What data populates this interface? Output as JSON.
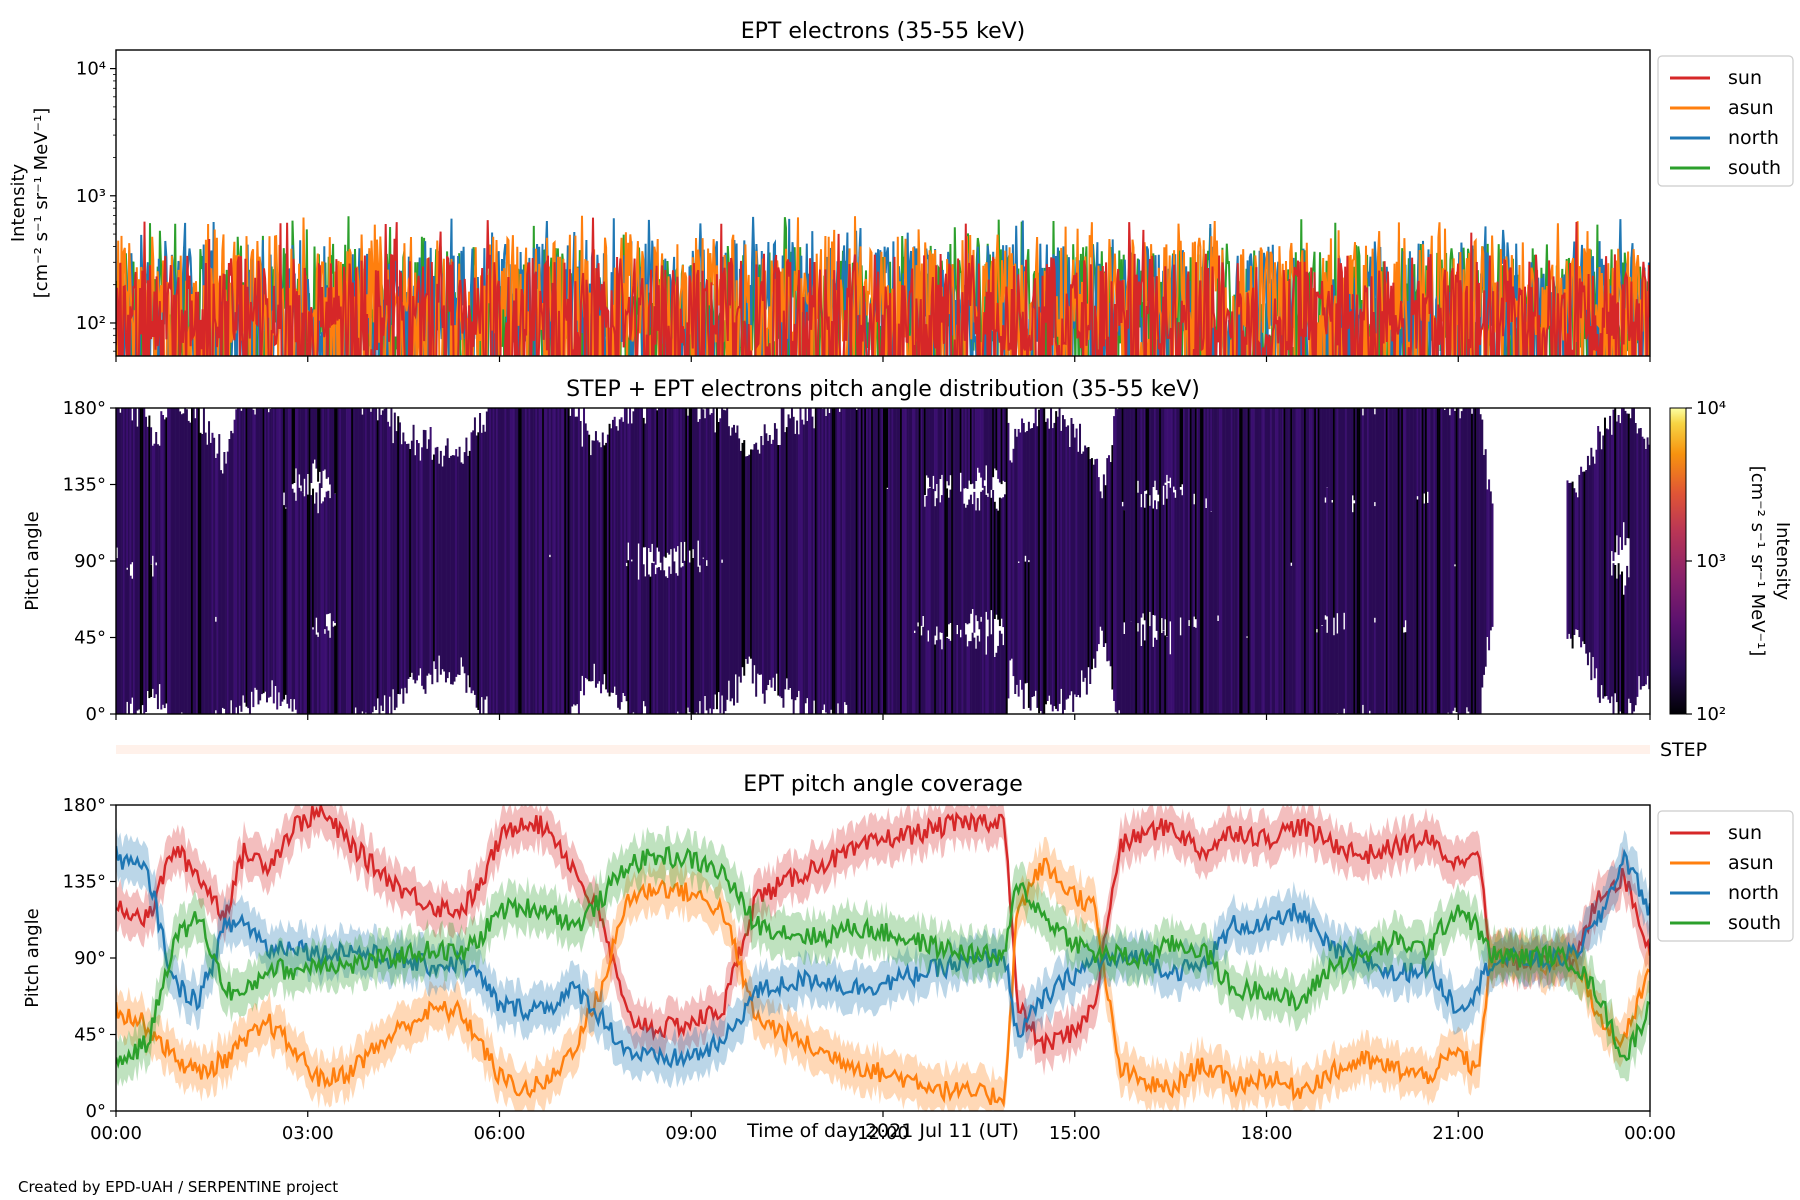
{
  "credit": "Created by EPD-UAH / SERPENTINE project",
  "xlabel": "Time of day 2021 Jul 11 (UT)",
  "x_ticks": [
    "00:00",
    "03:00",
    "06:00",
    "09:00",
    "12:00",
    "15:00",
    "18:00",
    "21:00",
    "00:00"
  ],
  "colors": {
    "sun": "#d62728",
    "asun": "#ff7f0e",
    "north": "#1f77b4",
    "south": "#2ca02c"
  },
  "chart_data": [
    {
      "type": "line",
      "title": "EPT electrons (35-55 keV)",
      "ylabel": "Intensity",
      "ylabel_unit": "[cm⁻² s⁻¹ sr⁻¹ MeV⁻¹]",
      "yscale": "log",
      "ylim": [
        55,
        14000
      ],
      "y_ticks": [
        "10²",
        "10³",
        "10⁴"
      ],
      "y_tick_values": [
        100,
        1000,
        10000
      ],
      "x_range_hours": [
        0,
        24
      ],
      "legend": {
        "placement": "right",
        "entries": [
          "sun",
          "asun",
          "north",
          "south"
        ]
      },
      "series": [
        {
          "name": "sun",
          "typical_range": [
            60,
            350
          ]
        },
        {
          "name": "asun",
          "typical_range": [
            70,
            500
          ]
        },
        {
          "name": "north",
          "typical_range": [
            70,
            450
          ]
        },
        {
          "name": "south",
          "typical_range": [
            60,
            420
          ]
        }
      ]
    },
    {
      "type": "heatmap",
      "title": "STEP + EPT electrons pitch angle distribution (35-55 keV)",
      "ylabel": "Pitch angle",
      "ylim": [
        0,
        180
      ],
      "y_ticks": [
        "0°",
        "45°",
        "90°",
        "135°",
        "180°"
      ],
      "y_tick_values": [
        0,
        45,
        90,
        135,
        180
      ],
      "colorbar": {
        "label": "Intensity",
        "unit": "[cm⁻² s⁻¹ sr⁻¹ MeV⁻¹]",
        "scale": "log",
        "range": [
          100,
          10000
        ],
        "ticks": [
          "10²",
          "10³",
          "10⁴"
        ],
        "tick_values": [
          100,
          1000,
          10000
        ]
      },
      "step_label": "STEP"
    },
    {
      "type": "line",
      "title": "EPT pitch angle coverage",
      "ylabel": "Pitch angle",
      "ylim": [
        0,
        180
      ],
      "y_ticks": [
        "0°",
        "45°",
        "90°",
        "135°",
        "180°"
      ],
      "y_tick_values": [
        0,
        45,
        90,
        135,
        180
      ],
      "x_range_hours": [
        0,
        24
      ],
      "legend": {
        "placement": "right",
        "entries": [
          "sun",
          "asun",
          "north",
          "south"
        ]
      },
      "x_hours": [
        0,
        0.5,
        0.9,
        1.3,
        1.7,
        2.0,
        2.4,
        2.8,
        3.2,
        3.6,
        4.0,
        4.5,
        5.0,
        5.4,
        5.7,
        6.0,
        6.4,
        6.8,
        7.2,
        7.6,
        8.0,
        8.5,
        9.0,
        9.5,
        10.0,
        10.5,
        11.0,
        11.5,
        12.0,
        12.5,
        13.0,
        13.5,
        13.9,
        14.1,
        14.5,
        14.9,
        15.3,
        15.7,
        16.0,
        16.5,
        17.0,
        17.5,
        18.0,
        18.5,
        19.0,
        19.5,
        20.0,
        20.5,
        21.0,
        21.3,
        21.5,
        22.0,
        22.4,
        22.8,
        23.2,
        23.6,
        24.0
      ],
      "series": [
        {
          "name": "sun",
          "values": [
            122,
            112,
            155,
            138,
            115,
            152,
            145,
            168,
            176,
            160,
            145,
            130,
            120,
            118,
            132,
            160,
            172,
            165,
            140,
            112,
            55,
            48,
            52,
            60,
            125,
            135,
            145,
            152,
            160,
            163,
            168,
            170,
            172,
            62,
            38,
            45,
            60,
            155,
            162,
            168,
            152,
            165,
            160,
            168,
            158,
            150,
            155,
            160,
            145,
            158,
            90,
            88,
            92,
            85,
            128,
            138,
            95
          ]
        },
        {
          "name": "asun",
          "values": [
            60,
            50,
            32,
            22,
            30,
            40,
            52,
            35,
            18,
            22,
            35,
            50,
            60,
            58,
            40,
            20,
            12,
            18,
            40,
            72,
            125,
            132,
            128,
            118,
            55,
            45,
            35,
            28,
            22,
            18,
            12,
            10,
            8,
            118,
            145,
            130,
            120,
            25,
            18,
            12,
            28,
            15,
            20,
            12,
            22,
            30,
            25,
            20,
            35,
            22,
            88,
            92,
            85,
            95,
            52,
            42,
            85
          ]
        },
        {
          "name": "north",
          "values": [
            150,
            140,
            75,
            65,
            108,
            112,
            95,
            98,
            92,
            95,
            92,
            88,
            85,
            88,
            78,
            62,
            60,
            62,
            72,
            55,
            35,
            30,
            32,
            40,
            70,
            75,
            78,
            72,
            75,
            80,
            85,
            88,
            92,
            45,
            65,
            78,
            88,
            88,
            92,
            82,
            85,
            110,
            108,
            118,
            95,
            90,
            80,
            85,
            60,
            72,
            88,
            90,
            88,
            92,
            112,
            150,
            118
          ]
        },
        {
          "name": "south",
          "values": [
            28,
            40,
            100,
            115,
            72,
            68,
            85,
            82,
            88,
            85,
            88,
            92,
            95,
            92,
            102,
            118,
            120,
            118,
            108,
            125,
            145,
            150,
            148,
            140,
            110,
            105,
            102,
            108,
            105,
            100,
            95,
            92,
            90,
            135,
            115,
            102,
            92,
            92,
            88,
            98,
            95,
            70,
            72,
            62,
            85,
            90,
            100,
            95,
            120,
            108,
            92,
            90,
            92,
            88,
            68,
            30,
            62
          ]
        }
      ]
    }
  ]
}
